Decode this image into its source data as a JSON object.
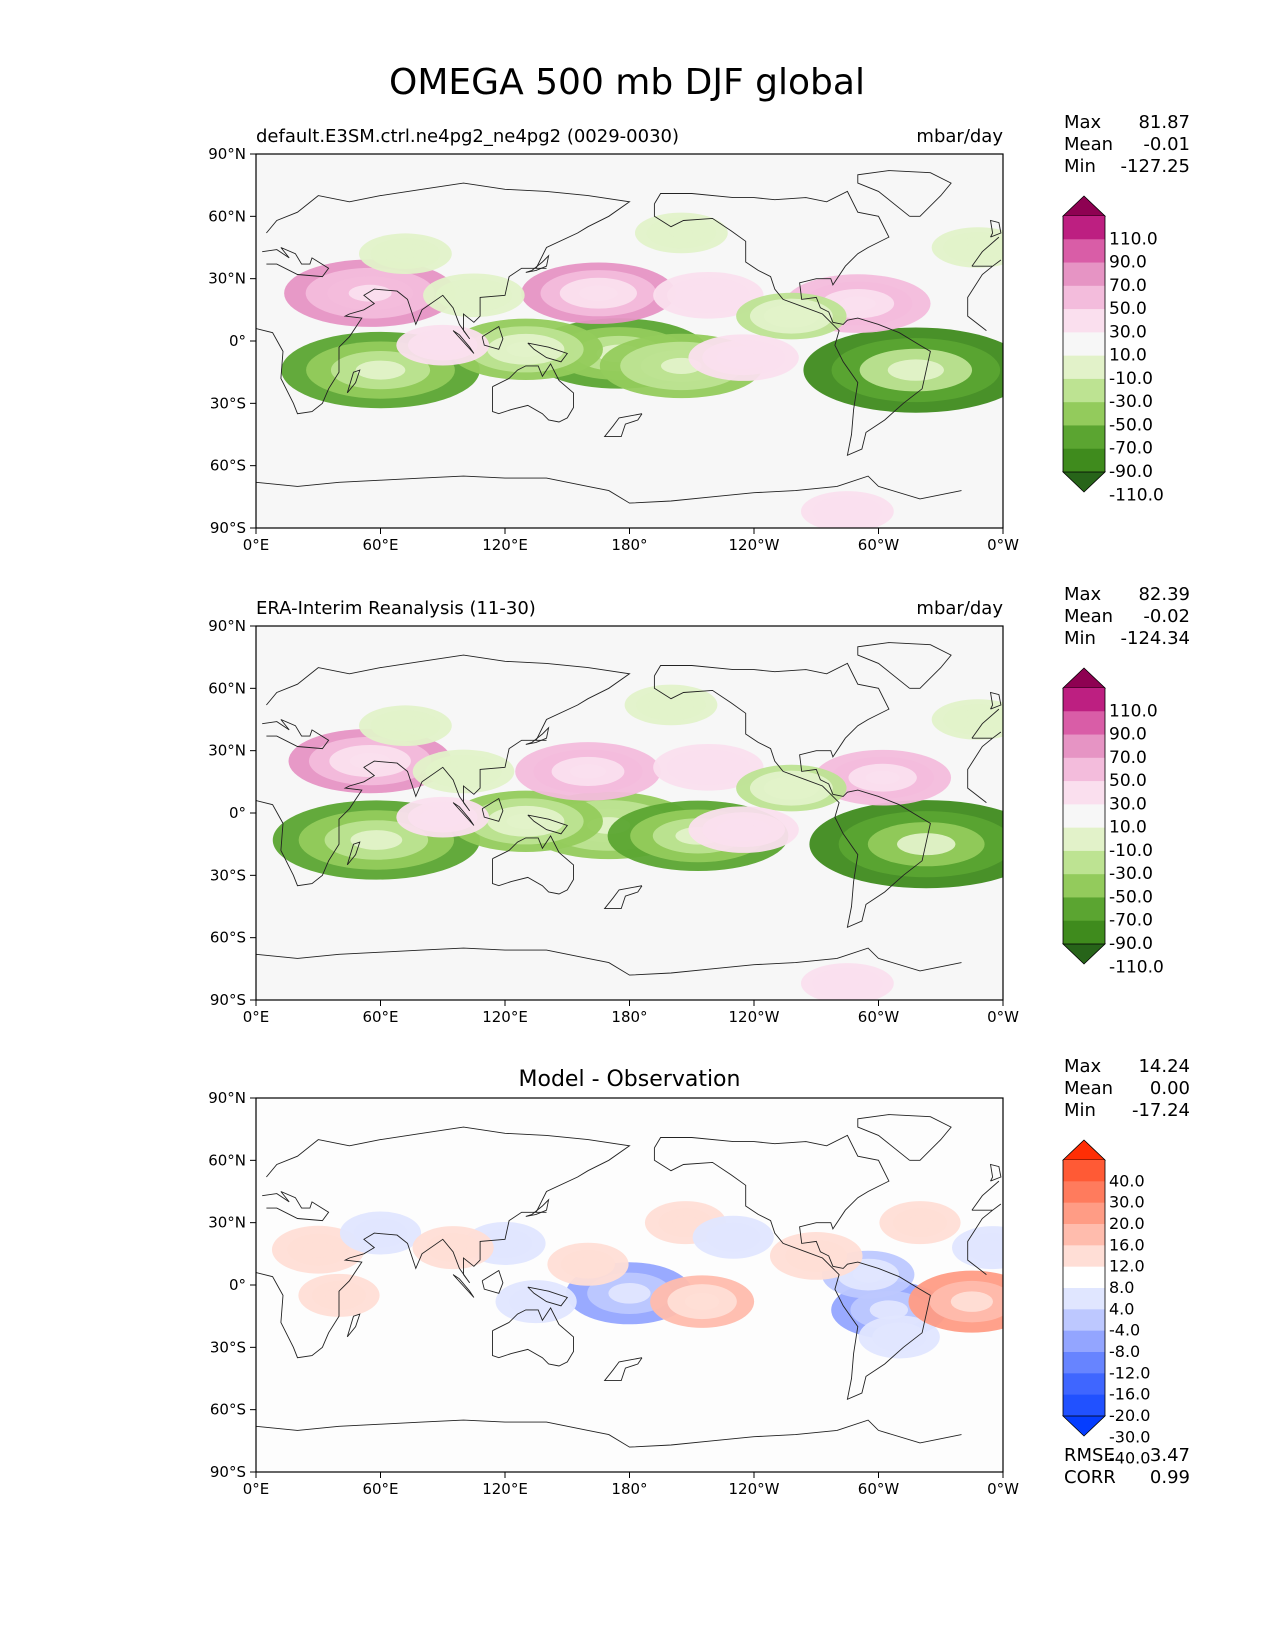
{
  "title": "OMEGA 500 mb DJF global",
  "x_ticks": [
    "0°E",
    "60°E",
    "120°E",
    "180°",
    "120°W",
    "60°W",
    "0°W"
  ],
  "y_ticks": [
    "90°N",
    "60°N",
    "30°N",
    "0°",
    "30°S",
    "60°S",
    "90°S"
  ],
  "colors": {
    "model_obs": [
      "#276419",
      "#3f8b1d",
      "#5ba531",
      "#93cb5c",
      "#bde392",
      "#e2f2c9",
      "#f7f7f7",
      "#fadfee",
      "#f3bcdc",
      "#e694c4",
      "#d95da7",
      "#bd1f81",
      "#8e0152"
    ],
    "diff": [
      "#053dff",
      "#2151ff",
      "#3f66ff",
      "#6784ff",
      "#93a5ff",
      "#bdc8ff",
      "#e0e6ff",
      "#ffffff",
      "#ffded6",
      "#ffbcad",
      "#ff9c85",
      "#ff7b5d",
      "#ff5a35",
      "#ff2e05"
    ]
  },
  "chart_data": [
    {
      "type": "heatmap",
      "panel": "test",
      "left_title": "default.E3SM.ctrl.ne4pg2_ne4pg2 (0029-0030)",
      "right_title": "mbar/day",
      "xlim": [
        0,
        360
      ],
      "ylim": [
        -90,
        90
      ],
      "stats": [
        {
          "label": "Max",
          "value": "81.87"
        },
        {
          "label": "Mean",
          "value": "-0.01"
        },
        {
          "label": "Min",
          "value": "-127.25"
        }
      ],
      "colorbar_levels": [
        "110.0",
        "90.0",
        "70.0",
        "50.0",
        "30.0",
        "10.0",
        "-10.0",
        "-30.0",
        "-50.0",
        "-70.0",
        "-90.0",
        "-110.0"
      ],
      "colorbar_kind": "model_obs",
      "features": [
        {
          "lon": 60,
          "lat": -14,
          "value": -80
        },
        {
          "lon": 175,
          "lat": -6,
          "value": -70
        },
        {
          "lon": 205,
          "lat": -12,
          "value": -60
        },
        {
          "lon": 318,
          "lat": -14,
          "value": -95
        },
        {
          "lon": 130,
          "lat": -4,
          "value": -55
        },
        {
          "lon": 55,
          "lat": 23,
          "value": 65
        },
        {
          "lon": 165,
          "lat": 23,
          "value": 55
        },
        {
          "lon": 290,
          "lat": 18,
          "value": 50
        },
        {
          "lon": 218,
          "lat": 22,
          "value": 30
        },
        {
          "lon": 258,
          "lat": 12,
          "value": -30
        },
        {
          "lon": 105,
          "lat": 22,
          "value": -25
        },
        {
          "lon": 72,
          "lat": 42,
          "value": -20
        },
        {
          "lon": 235,
          "lat": -8,
          "value": 30
        },
        {
          "lon": 90,
          "lat": -2,
          "value": 20
        },
        {
          "lon": 348,
          "lat": 45,
          "value": -20
        },
        {
          "lon": 205,
          "lat": 52,
          "value": -20
        },
        {
          "lon": 285,
          "lat": -82,
          "value": 20
        }
      ]
    },
    {
      "type": "heatmap",
      "panel": "reference",
      "left_title": "ERA-Interim Reanalysis (11-30)",
      "right_title": "mbar/day",
      "xlim": [
        0,
        360
      ],
      "ylim": [
        -90,
        90
      ],
      "stats": [
        {
          "label": "Max",
          "value": "82.39"
        },
        {
          "label": "Mean",
          "value": "-0.02"
        },
        {
          "label": "Min",
          "value": "-124.34"
        }
      ],
      "colorbar_levels": [
        "110.0",
        "90.0",
        "70.0",
        "50.0",
        "30.0",
        "10.0",
        "-10.0",
        "-30.0",
        "-50.0",
        "-70.0",
        "-90.0",
        "-110.0"
      ],
      "colorbar_kind": "model_obs",
      "features": [
        {
          "lon": 58,
          "lat": -13,
          "value": -85
        },
        {
          "lon": 170,
          "lat": -6,
          "value": -65
        },
        {
          "lon": 213,
          "lat": -11,
          "value": -70
        },
        {
          "lon": 323,
          "lat": -15,
          "value": -100
        },
        {
          "lon": 130,
          "lat": -4,
          "value": -55
        },
        {
          "lon": 55,
          "lat": 25,
          "value": 60
        },
        {
          "lon": 160,
          "lat": 20,
          "value": 50
        },
        {
          "lon": 302,
          "lat": 17,
          "value": 45
        },
        {
          "lon": 218,
          "lat": 22,
          "value": 30
        },
        {
          "lon": 258,
          "lat": 12,
          "value": -30
        },
        {
          "lon": 100,
          "lat": 20,
          "value": -25
        },
        {
          "lon": 72,
          "lat": 42,
          "value": -20
        },
        {
          "lon": 235,
          "lat": -8,
          "value": 30
        },
        {
          "lon": 90,
          "lat": -2,
          "value": 20
        },
        {
          "lon": 348,
          "lat": 45,
          "value": -20
        },
        {
          "lon": 200,
          "lat": 52,
          "value": -20
        },
        {
          "lon": 285,
          "lat": -82,
          "value": 20
        }
      ]
    },
    {
      "type": "heatmap",
      "panel": "difference",
      "center_title": "Model - Observation",
      "xlim": [
        0,
        360
      ],
      "ylim": [
        -90,
        90
      ],
      "stats": [
        {
          "label": "Max",
          "value": "14.24"
        },
        {
          "label": "Mean",
          "value": "0.00"
        },
        {
          "label": "Min",
          "value": "-17.24"
        }
      ],
      "extra_stats": [
        {
          "label": "RMSE",
          "value": "3.47"
        },
        {
          "label": "CORR",
          "value": "0.99"
        }
      ],
      "colorbar_levels": [
        "40.0",
        "30.0",
        "20.0",
        "16.0",
        "12.0",
        "8.0",
        "4.0",
        "-4.0",
        "-8.0",
        "-12.0",
        "-16.0",
        "-20.0",
        "-30.0",
        "-40.0"
      ],
      "colorbar_kind": "diff",
      "features": [
        {
          "lon": 180,
          "lat": -4,
          "value": -14
        },
        {
          "lon": 305,
          "lat": -12,
          "value": -12
        },
        {
          "lon": 295,
          "lat": 5,
          "value": -8
        },
        {
          "lon": 310,
          "lat": -25,
          "value": -6
        },
        {
          "lon": 135,
          "lat": -8,
          "value": -6
        },
        {
          "lon": 345,
          "lat": -8,
          "value": 14
        },
        {
          "lon": 215,
          "lat": -8,
          "value": 10
        },
        {
          "lon": 160,
          "lat": 10,
          "value": 6
        },
        {
          "lon": 270,
          "lat": 14,
          "value": 8
        },
        {
          "lon": 30,
          "lat": 17,
          "value": 8
        },
        {
          "lon": 60,
          "lat": 25,
          "value": -6
        },
        {
          "lon": 120,
          "lat": 20,
          "value": -6
        },
        {
          "lon": 207,
          "lat": 30,
          "value": 6
        },
        {
          "lon": 230,
          "lat": 23,
          "value": -6
        },
        {
          "lon": 40,
          "lat": -5,
          "value": 6
        },
        {
          "lon": 95,
          "lat": 18,
          "value": 6
        },
        {
          "lon": 320,
          "lat": 30,
          "value": 6
        },
        {
          "lon": 355,
          "lat": 18,
          "value": -6
        }
      ]
    }
  ]
}
